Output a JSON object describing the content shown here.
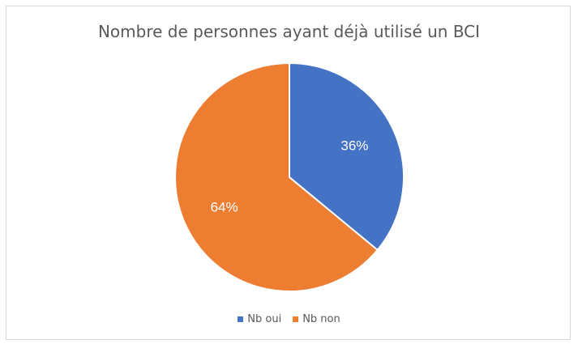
{
  "chart_data": {
    "type": "pie",
    "title": "Nombre de personnes ayant déjà utilisé un BCI",
    "categories": [
      "Nb oui",
      "Nb non"
    ],
    "values": [
      36,
      64
    ],
    "labels": [
      "36%",
      "64%"
    ],
    "colors": [
      "#4472C4",
      "#ED7D31"
    ],
    "legend_position": "bottom"
  }
}
